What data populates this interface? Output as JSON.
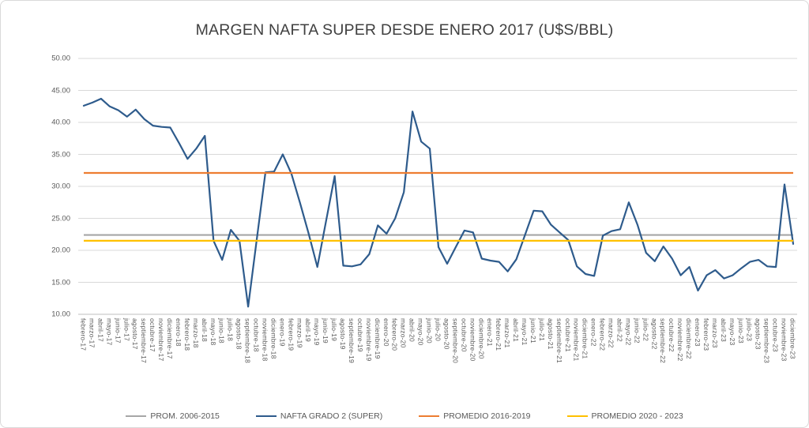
{
  "chart": {
    "title": "MARGEN NAFTA SUPER DESDE ENERO 2017 (U$S/BBL)"
  },
  "chart_data": {
    "type": "line",
    "title": "MARGEN NAFTA SUPER DESDE ENERO 2017 (U$S/BBL)",
    "xlabel": "",
    "ylabel": "",
    "ylim": [
      10,
      50
    ],
    "ytick_step": 5,
    "ytick_labels": [
      "50.00",
      "45.00",
      "40.00",
      "35.00",
      "30.00",
      "25.00",
      "20.00",
      "15.00",
      "10.00"
    ],
    "grid": "horizontal",
    "legend_position": "bottom",
    "categories": [
      "febrero-17",
      "marzo-17",
      "abril-17",
      "mayo-17",
      "junio-17",
      "julio-17",
      "agosto-17",
      "septiembre-17",
      "octubre-17",
      "noviembre-17",
      "diciembre-17",
      "enero-18",
      "febrero-18",
      "marzo-18",
      "abril-18",
      "mayo-18",
      "junio-18",
      "julio-18",
      "agosto-18",
      "septiembre-18",
      "octubre-18",
      "noviembre-18",
      "diciembre-18",
      "enero-19",
      "febrero-19",
      "marzo-19",
      "abril-19",
      "mayo-19",
      "junio-19",
      "julio-19",
      "agosto-19",
      "septiembre-19",
      "octubre-19",
      "noviembre-19",
      "diciembre-19",
      "enero-20",
      "febrero-20",
      "marzo-20",
      "abril-20",
      "mayo-20",
      "junio-20",
      "julio-20",
      "agosto-20",
      "septiembre-20",
      "octubre-20",
      "noviembre-20",
      "diciembre-20",
      "enero-21",
      "febrero-21",
      "marzo-21",
      "abril-21",
      "mayo-21",
      "junio-21",
      "julio-21",
      "agosto-21",
      "septiembre-21",
      "octubre-21",
      "noviembre-21",
      "diciembre-21",
      "enero-22",
      "febrero-22",
      "marzo-22",
      "abril-22",
      "mayo-22",
      "junio-22",
      "julio-22",
      "agosto-22",
      "septiembre-22",
      "octubre-22",
      "noviembre-22",
      "diciembre-22",
      "enero-23",
      "febrero-23",
      "marzo-23",
      "abril-23",
      "mayo-23",
      "junio-23",
      "julio-23",
      "agosto-23",
      "septiembre-23",
      "octubre-23",
      "noviembre-23",
      "diciembre-23"
    ],
    "series": [
      {
        "name": "NAFTA GRADO 2 (SUPER)",
        "color": "#2E5B8C",
        "values": [
          42.6,
          43.1,
          43.7,
          42.5,
          41.9,
          40.9,
          42.0,
          40.5,
          39.5,
          39.3,
          39.2,
          36.8,
          34.3,
          35.9,
          37.9,
          21.5,
          18.5,
          23.2,
          21.5,
          11.2,
          21.7,
          32.2,
          32.3,
          35.0,
          32.0,
          27.4,
          22.6,
          17.4,
          24.5,
          31.6,
          17.6,
          17.5,
          17.8,
          19.4,
          23.9,
          22.6,
          25.0,
          29.1,
          41.7,
          37.0,
          35.9,
          20.5,
          17.9,
          20.5,
          23.1,
          22.8,
          18.7,
          18.4,
          18.2,
          16.7,
          18.6,
          22.4,
          26.2,
          26.1,
          24.0,
          22.8,
          21.6,
          17.5,
          16.3,
          16.0,
          22.3,
          23.0,
          23.3,
          27.5,
          24.0,
          19.6,
          18.3,
          20.6,
          18.7,
          16.1,
          17.4,
          13.7,
          16.1,
          16.9,
          15.6,
          16.1,
          17.2,
          18.2,
          18.5,
          17.5,
          17.4,
          30.3,
          21.0
        ]
      }
    ],
    "ref_lines": [
      {
        "name": "PROM. 2006-2015",
        "value": 22.4,
        "color": "#A6A6A6"
      },
      {
        "name": "PROMEDIO 2016-2019",
        "value": 32.1,
        "color": "#ED7D31"
      },
      {
        "name": "PROMEDIO 2020 - 2023",
        "value": 21.5,
        "color": "#FFC000"
      }
    ]
  },
  "legend": {
    "items": [
      {
        "label": "PROM. 2006-2015",
        "color": "#A6A6A6",
        "thickness": 2.5
      },
      {
        "label": "NAFTA GRADO 2 (SUPER)",
        "color": "#2E5B8C",
        "thickness": 2.5
      },
      {
        "label": "PROMEDIO 2016-2019",
        "color": "#ED7D31",
        "thickness": 2.5
      },
      {
        "label": "PROMEDIO 2020 - 2023",
        "color": "#FFC000",
        "thickness": 2.5
      }
    ]
  },
  "colors": {
    "gridline": "#D9D9D9",
    "axis_line": "#BFBFBF",
    "title_text": "#404040",
    "axis_text": "#595959"
  }
}
